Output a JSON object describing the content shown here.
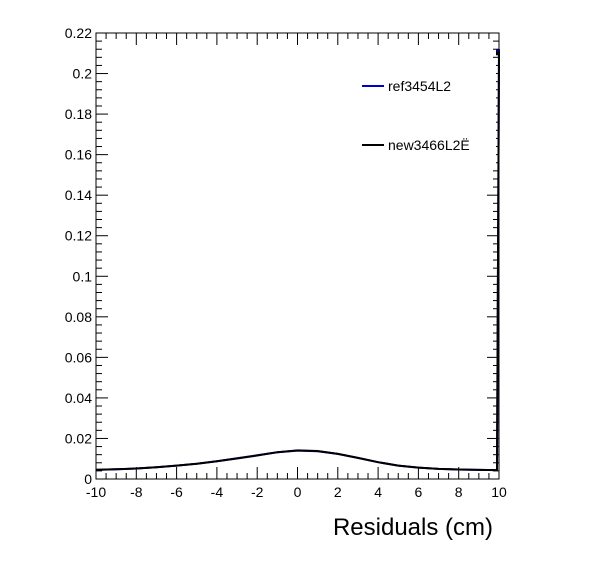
{
  "chart_data": {
    "type": "line",
    "title": "",
    "xlabel": "Residuals (cm)",
    "ylabel": "",
    "xlim": [
      -10,
      10
    ],
    "ylim": [
      0,
      0.22
    ],
    "grid": false,
    "legend_position": "top-right",
    "x_ticks": [
      -10,
      -8,
      -6,
      -4,
      -2,
      0,
      2,
      4,
      6,
      8,
      10
    ],
    "x_tick_labels": [
      "-10",
      "-8",
      "-6",
      "-4",
      "-2",
      "0",
      "2",
      "4",
      "6",
      "8",
      "10"
    ],
    "y_ticks": [
      0,
      0.02,
      0.04,
      0.06,
      0.08,
      0.1,
      0.12,
      0.14,
      0.16,
      0.18,
      0.2,
      0.22
    ],
    "y_tick_labels": [
      "0",
      "0.02",
      "0.04",
      "0.06",
      "0.08",
      "0.1",
      "0.12",
      "0.14",
      "0.16",
      "0.18",
      "0.2",
      "0.22"
    ],
    "x": [
      -10,
      -9,
      -8,
      -7,
      -6,
      -5,
      -4,
      -3,
      -2,
      -1,
      0,
      1,
      2,
      3,
      4,
      5,
      6,
      7,
      8,
      9,
      9.9,
      10
    ],
    "series": [
      {
        "name": "ref3454L2",
        "color": "#0000cc",
        "values": [
          0.0045,
          0.0048,
          0.0052,
          0.0058,
          0.0066,
          0.0075,
          0.0088,
          0.0102,
          0.0117,
          0.0132,
          0.014,
          0.0137,
          0.0124,
          0.0104,
          0.0083,
          0.0066,
          0.0056,
          0.005,
          0.0047,
          0.0045,
          0.0044,
          0.211
        ]
      },
      {
        "name": "new3466L2Ë",
        "color": "#000000",
        "values": [
          0.0046,
          0.0048,
          0.0052,
          0.0058,
          0.0066,
          0.0075,
          0.0088,
          0.0101,
          0.0116,
          0.0132,
          0.0141,
          0.0138,
          0.0124,
          0.0104,
          0.0083,
          0.0066,
          0.0056,
          0.005,
          0.0047,
          0.0045,
          0.0044,
          0.21
        ]
      }
    ]
  }
}
